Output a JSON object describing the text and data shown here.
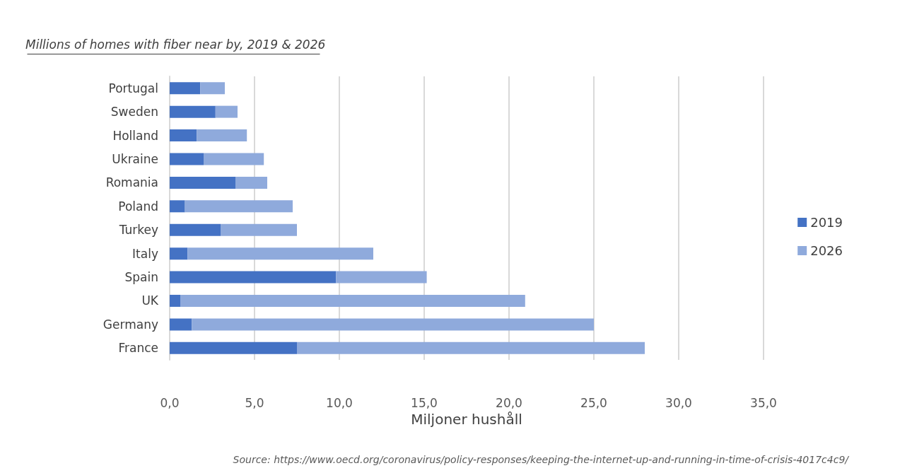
{
  "chart_data": {
    "type": "bar",
    "orientation": "horizontal",
    "stacked": true,
    "title": "Millions of homes with fiber near by, 2019 & 2026",
    "xlabel": "Miljoner hushåll",
    "categories": [
      "Portugal",
      "Sweden",
      "Holland",
      "Ukraine",
      "Romania",
      "Poland",
      "Turkey",
      "Italy",
      "Spain",
      "UK",
      "Germany",
      "France"
    ],
    "series": [
      {
        "name": "2019",
        "color": "#4472c4",
        "values": [
          1.8,
          2.7,
          1.6,
          2.0,
          3.9,
          0.9,
          3.0,
          1.05,
          9.8,
          0.65,
          1.3,
          7.5
        ]
      },
      {
        "name": "2026",
        "color": "#8faadc",
        "values": [
          1.45,
          1.3,
          2.95,
          3.55,
          1.85,
          6.35,
          4.5,
          10.95,
          5.35,
          20.3,
          23.7,
          20.5
        ]
      }
    ],
    "xlim": [
      0,
      35
    ],
    "xticks": [
      {
        "value": 0,
        "label": "0,0"
      },
      {
        "value": 5,
        "label": "5,0"
      },
      {
        "value": 10,
        "label": "10,0"
      },
      {
        "value": 15,
        "label": "15,0"
      },
      {
        "value": 20,
        "label": "20,0"
      },
      {
        "value": 25,
        "label": "25,0"
      },
      {
        "value": 30,
        "label": "30,0"
      },
      {
        "value": 35,
        "label": "35,0"
      }
    ],
    "grid": "x",
    "legend": "right",
    "annotations": [
      "Source: https://www.oecd.org/coronavirus/policy-responses/keeping-the-internet-up-and-running-in-time-of-crisis-4017c4c9/"
    ]
  }
}
